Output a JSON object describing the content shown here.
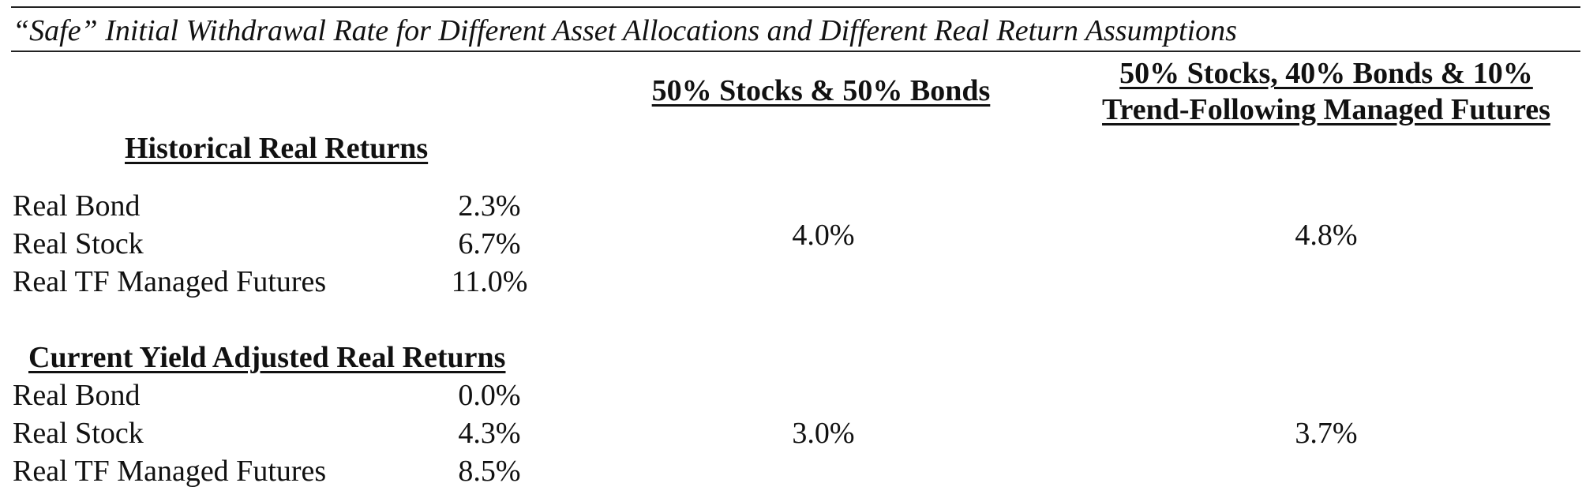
{
  "title": "“Safe” Initial Withdrawal Rate for Different Asset Allocations and Different Real Return Assumptions",
  "columns": {
    "col1": "50% Stocks & 50% Bonds",
    "col2_line1": "50% Stocks, 40% Bonds & 10%",
    "col2_line2": "Trend-Following Managed Futures"
  },
  "historical": {
    "heading": "Historical Real Returns",
    "rows": [
      {
        "label": "Real Bond",
        "value": "2.3%"
      },
      {
        "label": "Real Stock",
        "value": "6.7%"
      },
      {
        "label": "Real TF Managed Futures",
        "value": "11.0%"
      }
    ],
    "result_col1": "4.0%",
    "result_col2": "4.8%"
  },
  "current": {
    "heading": "Current Yield Adjusted Real Returns",
    "rows": [
      {
        "label": "Real Bond",
        "value": "0.0%"
      },
      {
        "label": "Real Stock",
        "value": "4.3%"
      },
      {
        "label": "Real TF Managed Futures",
        "value": "8.5%"
      }
    ],
    "result_col1": "3.0%",
    "result_col2": "3.7%"
  }
}
